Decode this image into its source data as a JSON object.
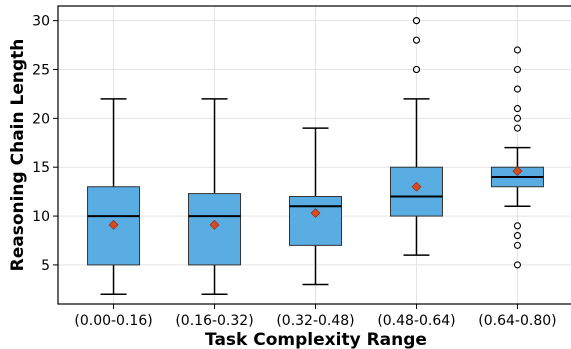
{
  "chart_data": {
    "type": "box",
    "title": "",
    "xlabel": "Task Complexity Range",
    "ylabel": "Reasoning Chain Length",
    "ylim": [
      1,
      31.5
    ],
    "yticks": [
      5,
      10,
      15,
      20,
      25,
      30
    ],
    "grid": true,
    "box_color": "#5aade2",
    "mean_color": "#d94a1e",
    "categories": [
      "(0.00-0.16)",
      "(0.16-0.32)",
      "(0.32-0.48)",
      "(0.48-0.64)",
      "(0.64-0.80)"
    ],
    "boxes": [
      {
        "whislo": 2,
        "q1": 5,
        "med": 10,
        "q3": 13,
        "whishi": 22,
        "mean": 9.1,
        "fliers": []
      },
      {
        "whislo": 2,
        "q1": 5,
        "med": 10,
        "q3": 12.3,
        "whishi": 22,
        "mean": 9.1,
        "fliers": []
      },
      {
        "whislo": 3,
        "q1": 7,
        "med": 11,
        "q3": 12,
        "whishi": 19,
        "mean": 10.3,
        "fliers": []
      },
      {
        "whislo": 6,
        "q1": 10,
        "med": 12,
        "q3": 15,
        "whishi": 22,
        "mean": 13,
        "fliers": [
          25,
          25,
          28,
          30,
          30
        ]
      },
      {
        "whislo": 11,
        "q1": 13,
        "med": 14,
        "q3": 15,
        "whishi": 17,
        "mean": 14.6,
        "fliers": [
          5,
          7,
          8,
          9,
          19,
          20,
          21,
          23,
          25,
          27
        ]
      }
    ]
  }
}
